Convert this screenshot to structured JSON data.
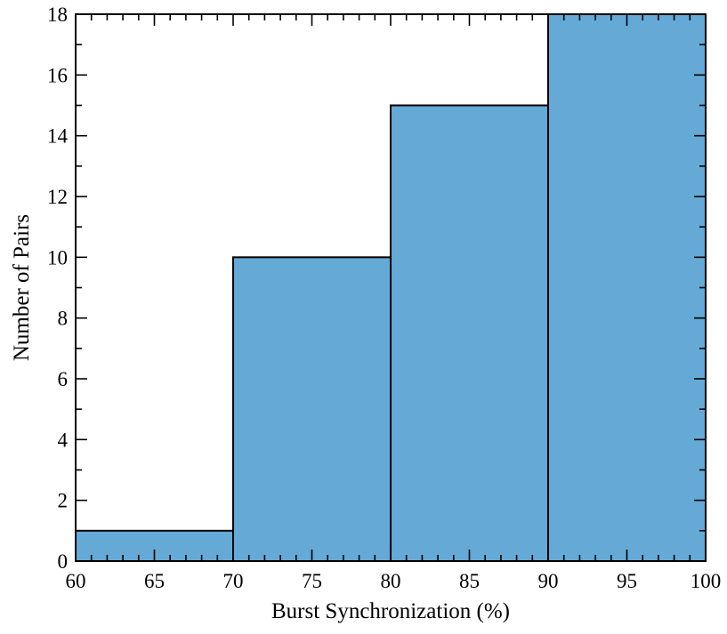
{
  "chart_data": {
    "type": "bar",
    "bins": [
      {
        "start": 60,
        "end": 70,
        "value": 1
      },
      {
        "start": 70,
        "end": 80,
        "value": 10
      },
      {
        "start": 80,
        "end": 90,
        "value": 15
      },
      {
        "start": 90,
        "end": 100,
        "value": 18
      }
    ],
    "xlabel": "Burst Synchronization (%)",
    "ylabel": "Number of Pairs",
    "xlim": [
      60,
      100
    ],
    "ylim": [
      0,
      18
    ],
    "xticks": [
      60,
      65,
      70,
      75,
      80,
      85,
      90,
      95,
      100
    ],
    "yticks": [
      0,
      2,
      4,
      6,
      8,
      10,
      12,
      14,
      16,
      18
    ],
    "bar_color": "#65a9d7",
    "edge_color": "#000000",
    "grid": false,
    "legend": "none"
  }
}
